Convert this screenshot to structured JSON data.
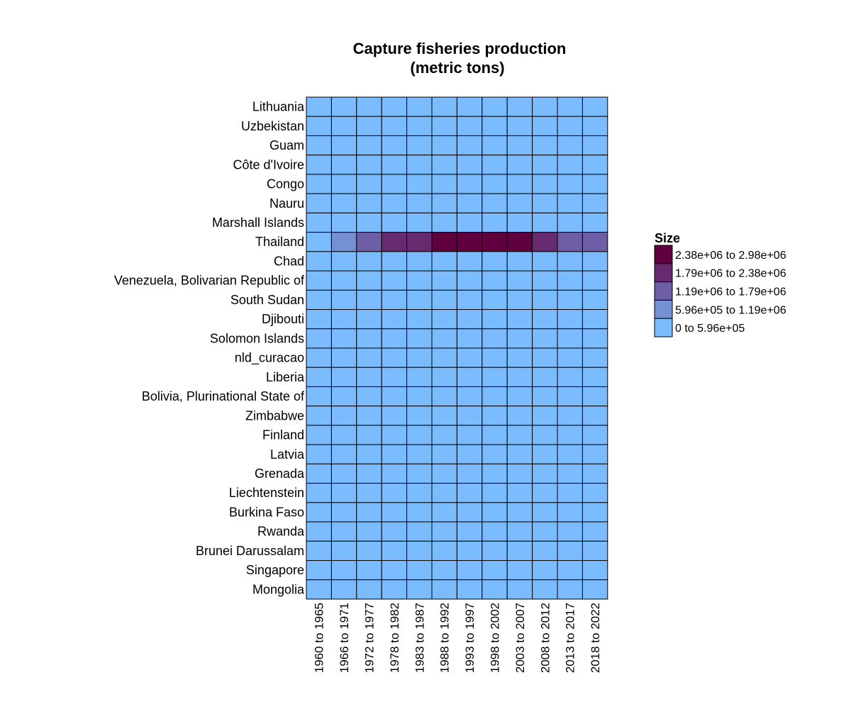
{
  "chart_data": {
    "type": "heatmap",
    "title": "Capture fisheries production",
    "subtitle": "(metric tons)",
    "rows": [
      "Lithuania",
      "Uzbekistan",
      "Guam",
      "Côte d'Ivoire",
      "Congo",
      "Nauru",
      "Marshall Islands",
      "Thailand",
      "Chad",
      "Venezuela, Bolivarian Republic of",
      "South Sudan",
      "Djibouti",
      "Solomon Islands",
      "nld_curacao",
      "Liberia",
      "Bolivia, Plurinational State of",
      "Zimbabwe",
      "Finland",
      "Latvia",
      "Grenada",
      "Liechtenstein",
      "Burkina Faso",
      "Rwanda",
      "Brunei Darussalam",
      "Singapore",
      "Mongolia"
    ],
    "columns": [
      "1960 to 1965",
      "1966 to 1971",
      "1972 to 1977",
      "1978 to 1982",
      "1983 to 1987",
      "1988 to 1992",
      "1993 to 1997",
      "1998 to 2002",
      "2003 to 2007",
      "2008 to 2012",
      "2013 to 2017",
      "2018 to 2022"
    ],
    "bins": [
      {
        "label": "0  to  5.96e+05",
        "min": 0,
        "max": 596000,
        "color": "#7abcff"
      },
      {
        "label": "5.96e+05  to  1.19e+06",
        "min": 596000,
        "max": 1190000,
        "color": "#7591d3"
      },
      {
        "label": "1.19e+06  to  1.79e+06",
        "min": 1190000,
        "max": 1790000,
        "color": "#6e5ea6"
      },
      {
        "label": "1.79e+06  to  2.38e+06",
        "min": 1790000,
        "max": 2380000,
        "color": "#672a6e"
      },
      {
        "label": "2.38e+06  to  2.98e+06",
        "min": 2380000,
        "max": 2980000,
        "color": "#60003f"
      }
    ],
    "highlight_row": "Thailand",
    "highlight_bins": [
      0,
      1,
      2,
      3,
      3,
      4,
      4,
      4,
      4,
      3,
      2,
      2
    ],
    "default_bin": 0,
    "legend_title": "Size",
    "legend_position": "right"
  }
}
